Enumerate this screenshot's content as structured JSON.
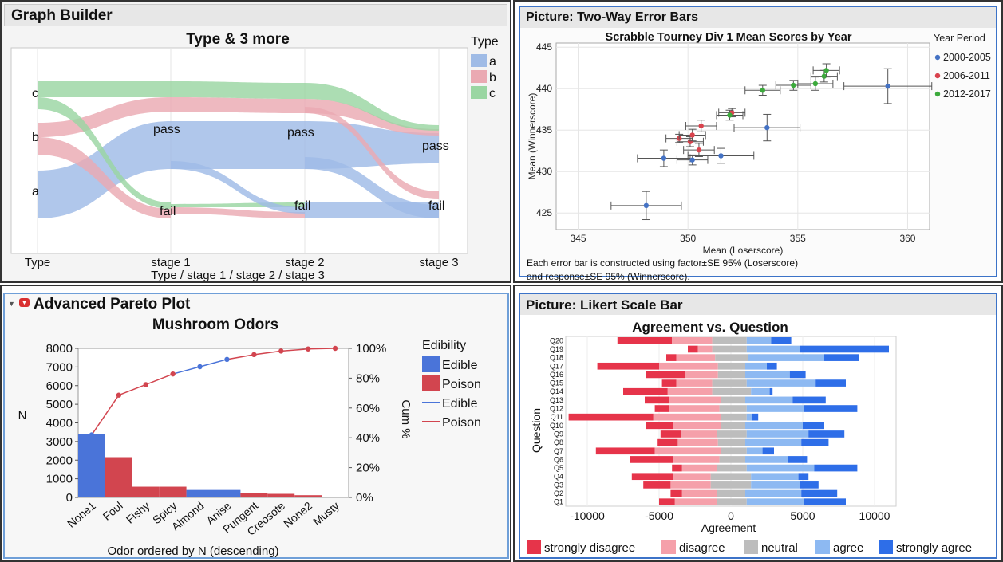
{
  "chart_data": [
    {
      "type": "sankey",
      "panel_title": "Graph Builder",
      "title": "Type & 3 more",
      "xlabel": "Type / stage 1 / stage 2 / stage 3",
      "stages": [
        "Type",
        "stage 1",
        "stage 2",
        "stage 3"
      ],
      "node_labels": {
        "type": [
          "a",
          "b",
          "c"
        ],
        "pass": "pass",
        "fail": "fail"
      },
      "legend_title": "Type",
      "legend": [
        {
          "name": "a",
          "color": "#9fbbe6"
        },
        {
          "name": "b",
          "color": "#eaa9b2"
        },
        {
          "name": "c",
          "color": "#9ad6a2"
        }
      ]
    },
    {
      "type": "scatter",
      "panel_title": "Picture: Two-Way Error Bars",
      "title": "Scrabble Tourney Div 1 Mean Scores by Year",
      "xlabel": "Mean (Loserscore)",
      "ylabel": "Mean (Winnerscore)",
      "xlim": [
        344,
        361
      ],
      "ylim": [
        423,
        445.5
      ],
      "xticks": [
        345,
        350,
        355,
        360
      ],
      "yticks": [
        425,
        430,
        435,
        440,
        445
      ],
      "legend_title": "Year Period",
      "series": [
        {
          "name": "2000-2005",
          "color": "#4472c4",
          "points": [
            {
              "x": 348.1,
              "y": 425.9,
              "xerr": 1.6,
              "yerr": 1.7
            },
            {
              "x": 348.9,
              "y": 431.6,
              "xerr": 1.2,
              "yerr": 1.0
            },
            {
              "x": 350.2,
              "y": 431.4,
              "xerr": 0.7,
              "yerr": 0.6
            },
            {
              "x": 351.5,
              "y": 431.9,
              "xerr": 1.5,
              "yerr": 0.9
            },
            {
              "x": 353.6,
              "y": 435.3,
              "xerr": 1.5,
              "yerr": 1.6
            },
            {
              "x": 359.1,
              "y": 440.3,
              "xerr": 2.0,
              "yerr": 2.1
            }
          ]
        },
        {
          "name": "2006-2011",
          "color": "#d9434d",
          "points": [
            {
              "x": 349.6,
              "y": 434.0,
              "xerr": 0.6,
              "yerr": 0.5
            },
            {
              "x": 350.1,
              "y": 433.6,
              "xerr": 0.6,
              "yerr": 0.6
            },
            {
              "x": 350.2,
              "y": 434.4,
              "xerr": 0.6,
              "yerr": 0.7
            },
            {
              "x": 350.6,
              "y": 435.5,
              "xerr": 0.7,
              "yerr": 0.7
            },
            {
              "x": 350.5,
              "y": 432.6,
              "xerr": 0.7,
              "yerr": 0.8
            },
            {
              "x": 352.0,
              "y": 437.1,
              "xerr": 0.6,
              "yerr": 0.5
            }
          ]
        },
        {
          "name": "2012-2017",
          "color": "#3caa3c",
          "points": [
            {
              "x": 351.9,
              "y": 436.8,
              "xerr": 0.6,
              "yerr": 0.6
            },
            {
              "x": 353.4,
              "y": 439.8,
              "xerr": 0.8,
              "yerr": 0.6
            },
            {
              "x": 354.8,
              "y": 440.4,
              "xerr": 0.8,
              "yerr": 0.6
            },
            {
              "x": 355.8,
              "y": 440.6,
              "xerr": 0.8,
              "yerr": 0.8
            },
            {
              "x": 356.2,
              "y": 441.5,
              "xerr": 0.6,
              "yerr": 0.7
            },
            {
              "x": 356.3,
              "y": 442.2,
              "xerr": 0.6,
              "yerr": 0.8
            }
          ]
        }
      ],
      "note_lines": [
        "Each error bar is constructed using factor±SE 95% (Loserscore)",
        "and response±SE 95% (Winnerscore)."
      ]
    },
    {
      "type": "pareto",
      "panel_title": "Advanced Pareto Plot",
      "title": "Mushroom Odors",
      "xlabel": "Odor ordered by N (descending)",
      "ylabel": "N",
      "y2label": "Cum %",
      "ylim": [
        0,
        8000
      ],
      "yticks": [
        0,
        1000,
        2000,
        3000,
        4000,
        5000,
        6000,
        7000,
        8000
      ],
      "y2ticks": [
        "0%",
        "20%",
        "40%",
        "60%",
        "80%",
        "100%"
      ],
      "categories": [
        "None1",
        "Foul",
        "Fishy",
        "Spicy",
        "Almond",
        "Anise",
        "Pungent",
        "Creosote",
        "None2",
        "Musty"
      ],
      "values": [
        3408,
        2160,
        576,
        576,
        400,
        400,
        256,
        192,
        120,
        36
      ],
      "edibility": [
        "Edible",
        "Poison",
        "Poison",
        "Poison",
        "Edible",
        "Edible",
        "Poison",
        "Poison",
        "Poison",
        "Poison"
      ],
      "cum_pct": [
        42.0,
        68.6,
        75.7,
        82.8,
        87.7,
        92.6,
        95.8,
        98.2,
        99.6,
        100.0
      ],
      "legend_title": "Edibility",
      "legend": [
        {
          "name": "Edible",
          "kind": "box",
          "color": "#4a74d9"
        },
        {
          "name": "Poison",
          "kind": "box",
          "color": "#d2454f"
        },
        {
          "name": "Edible",
          "kind": "line",
          "color": "#4a74d9"
        },
        {
          "name": "Poison",
          "kind": "line",
          "color": "#d2454f"
        }
      ]
    },
    {
      "type": "diverging-bar",
      "panel_title": "Picture: Likert Scale Bar",
      "title": "Agreement vs. Question",
      "xlabel": "Agreement",
      "ylabel": "Question",
      "xlim": [
        -11500,
        11500
      ],
      "xticks": [
        -10000,
        -5000,
        0,
        5000,
        10000
      ],
      "categories": [
        "Q1",
        "Q2",
        "Q3",
        "Q4",
        "Q5",
        "Q6",
        "Q7",
        "Q8",
        "Q9",
        "Q10",
        "Q11",
        "Q12",
        "Q13",
        "Q14",
        "Q15",
        "Q16",
        "Q17",
        "Q18",
        "Q19",
        "Q20"
      ],
      "neutral_bounds": [
        [
          -1000,
          1100
        ],
        [
          -1000,
          1000
        ],
        [
          -1400,
          1400
        ],
        [
          -1400,
          1400
        ],
        [
          -1000,
          1100
        ],
        [
          -800,
          1000
        ],
        [
          -700,
          1100
        ],
        [
          -900,
          1000
        ],
        [
          -1000,
          1100
        ],
        [
          -700,
          1000
        ],
        [
          -700,
          1100
        ],
        [
          -800,
          1100
        ],
        [
          -700,
          1000
        ],
        [
          -1300,
          1400
        ],
        [
          -1300,
          1100
        ],
        [
          -900,
          1000
        ],
        [
          -900,
          1000
        ],
        [
          -1100,
          1200
        ],
        [
          -1300,
          1100
        ],
        [
          -1300,
          1100
        ]
      ],
      "series": [
        {
          "name": "strongly disagree",
          "color": "#e6344a",
          "values": [
            1100,
            800,
            1900,
            2900,
            700,
            3000,
            4100,
            1400,
            1400,
            1900,
            5900,
            1000,
            1700,
            3100,
            1000,
            2700,
            4300,
            700,
            700,
            3800
          ]
        },
        {
          "name": "disagree",
          "color": "#f5a0aa",
          "values": [
            2900,
            2400,
            2800,
            2600,
            2400,
            3200,
            4600,
            2800,
            2500,
            3300,
            4700,
            3500,
            3600,
            3100,
            2500,
            2300,
            4100,
            2700,
            1000,
            2800
          ]
        },
        {
          "name": "neutral",
          "color": "#bdbdbd",
          "values": [
            2100,
            2000,
            2800,
            2800,
            2100,
            1800,
            1800,
            1900,
            2100,
            1700,
            1800,
            1900,
            1700,
            2700,
            2400,
            1900,
            1900,
            2300,
            2400,
            2400
          ]
        },
        {
          "name": "agree",
          "color": "#8db9f2",
          "values": [
            4000,
            3900,
            3400,
            3300,
            4700,
            3000,
            1100,
            3900,
            4300,
            4000,
            400,
            4000,
            3300,
            1300,
            4800,
            3100,
            1500,
            5300,
            3700,
            1700
          ]
        },
        {
          "name": "strongly agree",
          "color": "#2e6ee8",
          "values": [
            2900,
            2500,
            1300,
            700,
            3000,
            1300,
            800,
            1900,
            2500,
            1500,
            400,
            3700,
            2300,
            200,
            2100,
            1100,
            700,
            2400,
            6200,
            1400
          ]
        }
      ]
    }
  ]
}
